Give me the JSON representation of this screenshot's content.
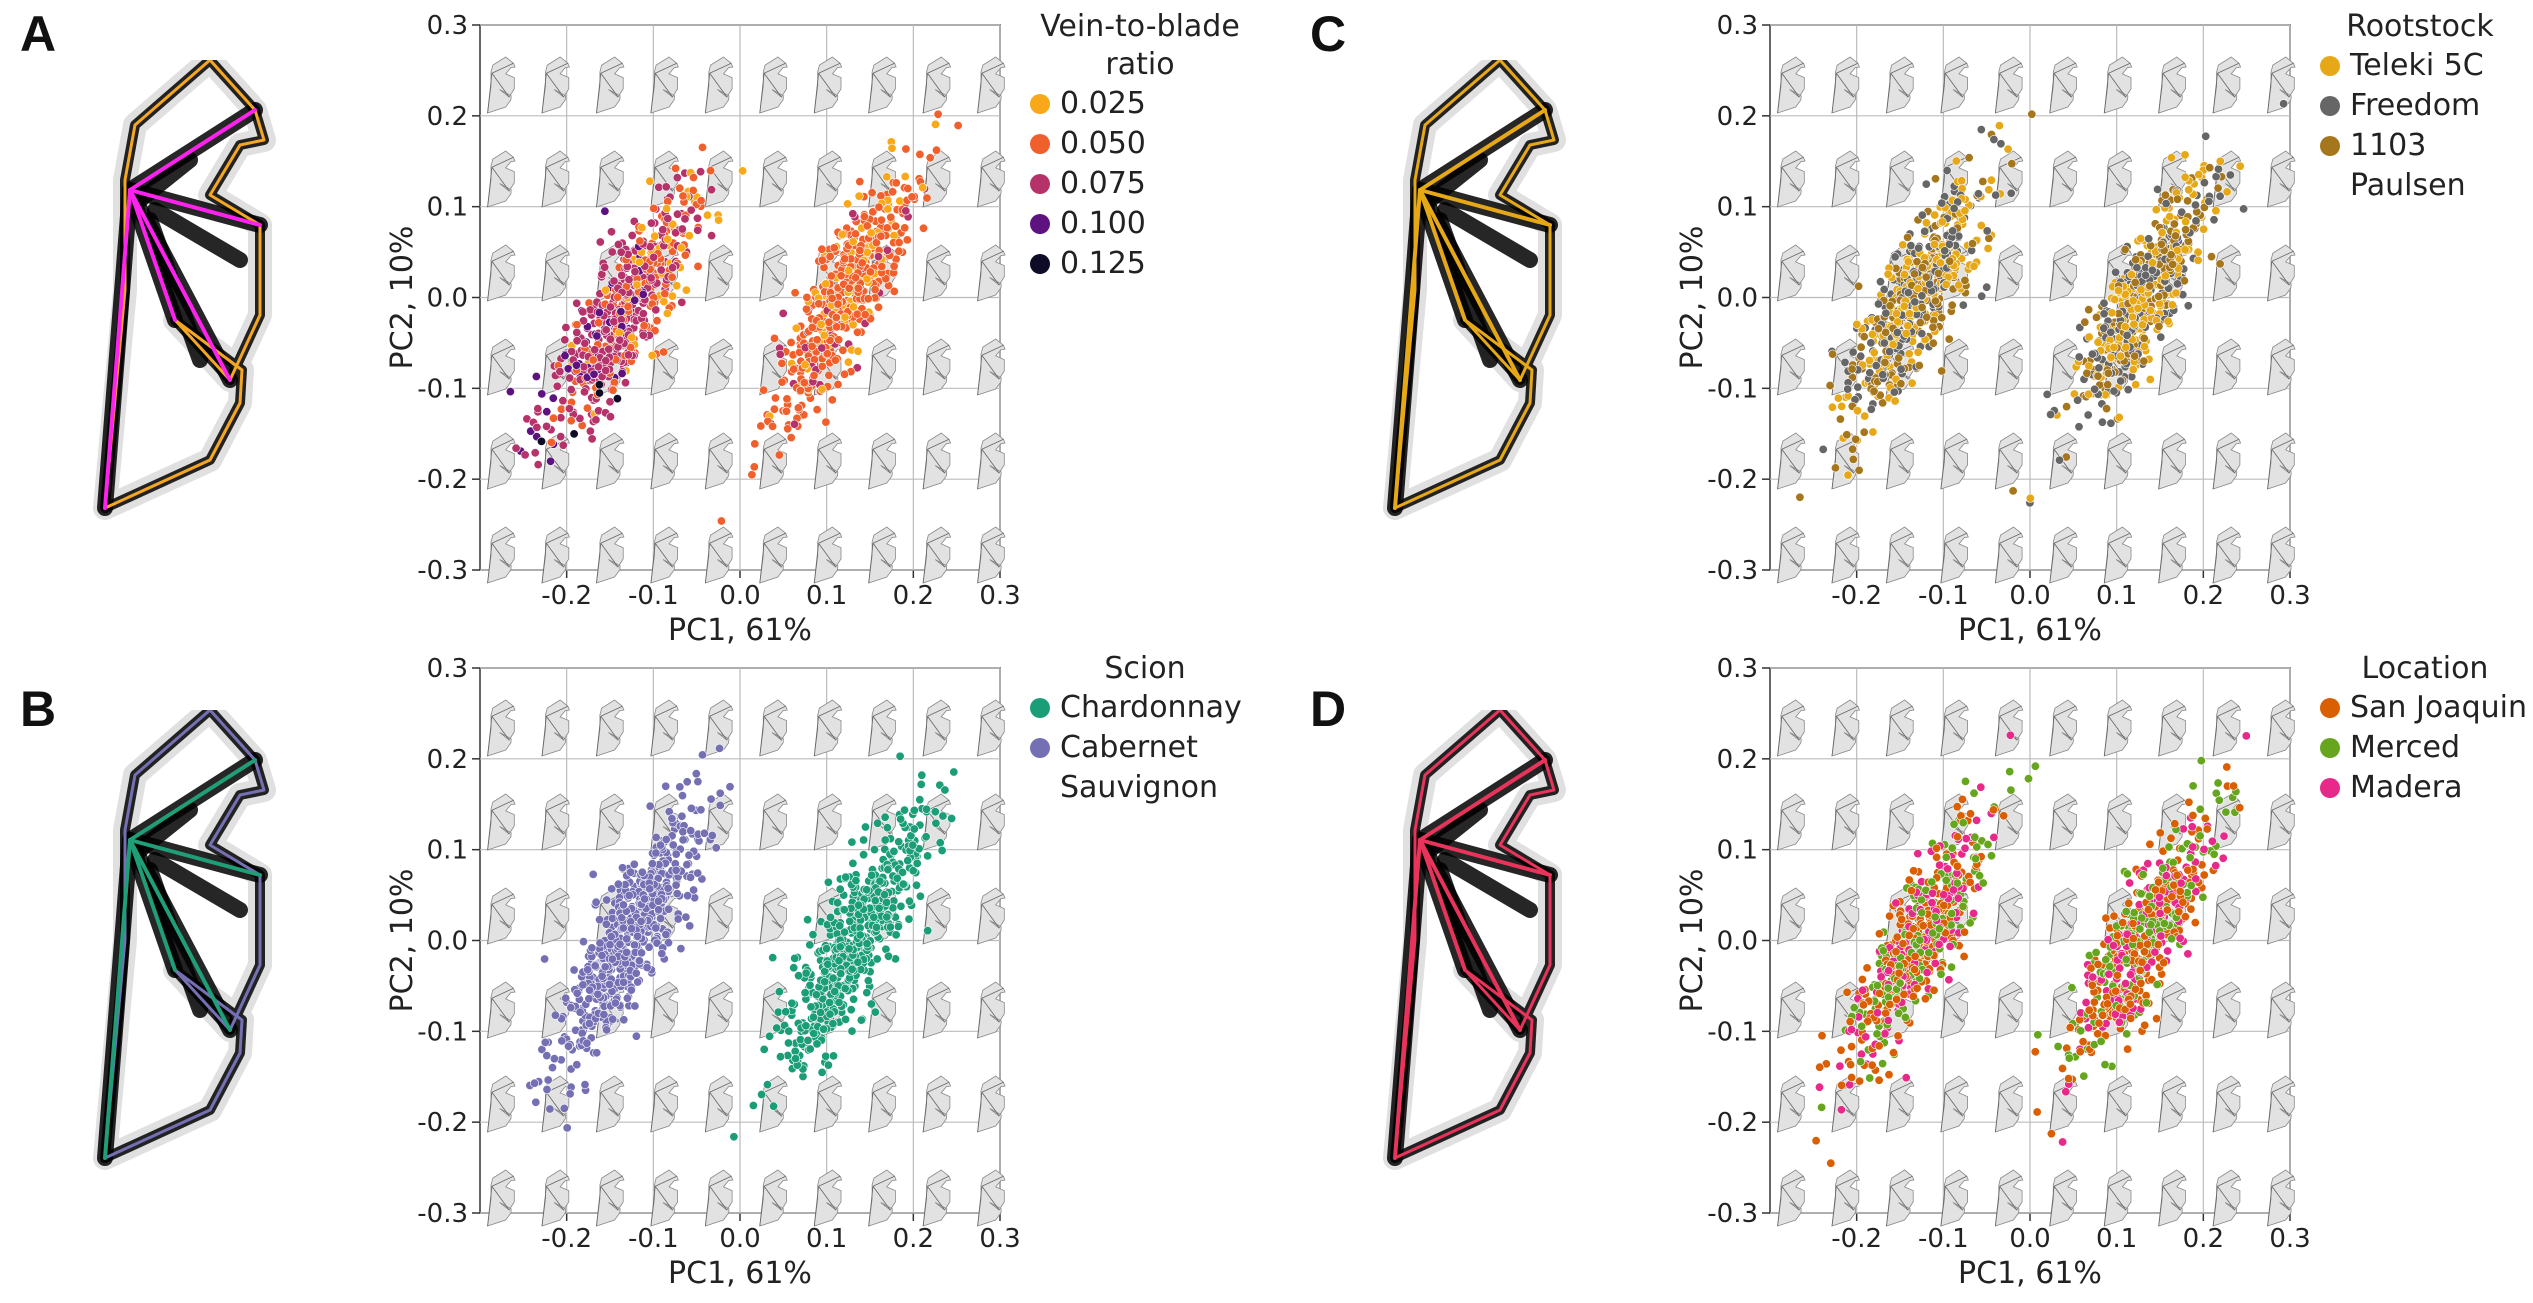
{
  "panels": [
    {
      "letter": "A",
      "legend_title": "Vein-to-blade\nratio",
      "outline_colors": {
        "veins": "#ff22ee",
        "blade": "#f5a623"
      },
      "legend": [
        {
          "label": "0.025",
          "color": "#f9a81a"
        },
        {
          "label": "0.050",
          "color": "#f0602d"
        },
        {
          "label": "0.075",
          "color": "#b5336a"
        },
        {
          "label": "0.100",
          "color": "#5d1280"
        },
        {
          "label": "0.125",
          "color": "#0e0b26"
        }
      ]
    },
    {
      "letter": "B",
      "legend_title": "Scion",
      "outline_colors": {
        "veins": "#1f9e77",
        "blade": "#7570b3"
      },
      "legend": [
        {
          "label": "Chardonnay",
          "color": "#1b9e77"
        },
        {
          "label": "Cabernet\nSauvignon",
          "color": "#7570b3"
        }
      ]
    },
    {
      "letter": "C",
      "legend_title": "Rootstock",
      "outline_colors": {
        "veins": "#e6a817",
        "blade": "#e6a817"
      },
      "legend": [
        {
          "label": "Teleki 5C",
          "color": "#e6a817"
        },
        {
          "label": "Freedom",
          "color": "#666666"
        },
        {
          "label": "1103\nPaulsen",
          "color": "#a6761d"
        }
      ]
    },
    {
      "letter": "D",
      "legend_title": "Location",
      "outline_colors": {
        "veins": "#e8345a",
        "blade": "#e8345a"
      },
      "legend": [
        {
          "label": "San Joaquin",
          "color": "#d95f02"
        },
        {
          "label": "Merced",
          "color": "#66a61e"
        },
        {
          "label": "Madera",
          "color": "#e7298a"
        }
      ]
    }
  ],
  "chart_data": [
    {
      "panel": "A",
      "type": "scatter",
      "xlabel": "PC1, 61%",
      "ylabel": "PC2, 10%",
      "xlim": [
        -0.3,
        0.3
      ],
      "ylim": [
        -0.3,
        0.3
      ],
      "xticks": [
        "-0.2",
        "-0.1",
        "0.0",
        "0.1",
        "0.2",
        "0.3"
      ],
      "yticks": [
        "0.3",
        "0.2",
        "0.1",
        "0.0",
        "-0.1",
        "-0.2",
        "-0.3"
      ],
      "grid": true,
      "legend_placement": "right",
      "series": [
        {
          "name": "0.025",
          "color": "#f9a81a",
          "clusters": [
            {
              "cx": -0.1,
              "cy": 0.02,
              "n": 60
            },
            {
              "cx": 0.13,
              "cy": 0.03,
              "n": 90
            }
          ]
        },
        {
          "name": "0.050",
          "color": "#f0602d",
          "clusters": [
            {
              "cx": -0.12,
              "cy": 0.0,
              "n": 180
            },
            {
              "cx": 0.12,
              "cy": 0.0,
              "n": 380
            }
          ]
        },
        {
          "name": "0.075",
          "color": "#b5336a",
          "clusters": [
            {
              "cx": -0.14,
              "cy": -0.02,
              "n": 330
            },
            {
              "cx": 0.11,
              "cy": -0.02,
              "n": 40
            }
          ]
        },
        {
          "name": "0.100",
          "color": "#5d1280",
          "clusters": [
            {
              "cx": -0.16,
              "cy": -0.05,
              "n": 60
            }
          ]
        },
        {
          "name": "0.125",
          "color": "#0e0b26",
          "clusters": [
            {
              "cx": -0.17,
              "cy": -0.1,
              "n": 6
            }
          ]
        }
      ]
    },
    {
      "panel": "B",
      "type": "scatter",
      "xlabel": "PC1, 61%",
      "ylabel": "PC2, 10%",
      "xlim": [
        -0.3,
        0.3
      ],
      "ylim": [
        -0.3,
        0.3
      ],
      "xticks": [
        "-0.2",
        "-0.1",
        "0.0",
        "0.1",
        "0.2",
        "0.3"
      ],
      "yticks": [
        "0.3",
        "0.2",
        "0.1",
        "0.0",
        "-0.1",
        "-0.2",
        "-0.3"
      ],
      "grid": true,
      "legend_placement": "right",
      "series": [
        {
          "name": "Cabernet Sauvignon",
          "color": "#7570b3",
          "clusters": [
            {
              "cx": -0.13,
              "cy": 0.0,
              "n": 620
            }
          ]
        },
        {
          "name": "Chardonnay",
          "color": "#1b9e77",
          "clusters": [
            {
              "cx": 0.13,
              "cy": 0.0,
              "n": 560
            }
          ]
        }
      ]
    },
    {
      "panel": "C",
      "type": "scatter",
      "xlabel": "PC1, 61%",
      "ylabel": "PC2, 10%",
      "xlim": [
        -0.3,
        0.3
      ],
      "ylim": [
        -0.3,
        0.3
      ],
      "xticks": [
        "-0.2",
        "-0.1",
        "0.0",
        "0.1",
        "0.2",
        "0.3"
      ],
      "yticks": [
        "0.3",
        "0.2",
        "0.1",
        "0.0",
        "-0.1",
        "-0.2",
        "-0.3"
      ],
      "grid": true,
      "legend_placement": "right",
      "series": [
        {
          "name": "Teleki 5C",
          "color": "#e6a817",
          "clusters": [
            {
              "cx": -0.13,
              "cy": 0.0,
              "n": 230
            },
            {
              "cx": 0.13,
              "cy": 0.0,
              "n": 210
            }
          ]
        },
        {
          "name": "Freedom",
          "color": "#666666",
          "clusters": [
            {
              "cx": -0.13,
              "cy": 0.0,
              "n": 200
            },
            {
              "cx": 0.13,
              "cy": 0.0,
              "n": 190
            }
          ]
        },
        {
          "name": "1103 Paulsen",
          "color": "#a6761d",
          "clusters": [
            {
              "cx": -0.13,
              "cy": 0.0,
              "n": 190
            },
            {
              "cx": 0.13,
              "cy": 0.0,
              "n": 170
            }
          ]
        }
      ]
    },
    {
      "panel": "D",
      "type": "scatter",
      "xlabel": "PC1, 61%",
      "ylabel": "PC2, 10%",
      "xlim": [
        -0.3,
        0.3
      ],
      "ylim": [
        -0.3,
        0.3
      ],
      "xticks": [
        "-0.2",
        "-0.1",
        "0.0",
        "0.1",
        "0.2",
        "0.3"
      ],
      "yticks": [
        "0.3",
        "0.2",
        "0.1",
        "0.0",
        "-0.1",
        "-0.2",
        "-0.3"
      ],
      "grid": true,
      "legend_placement": "right",
      "series": [
        {
          "name": "San Joaquin",
          "color": "#d95f02",
          "clusters": [
            {
              "cx": -0.13,
              "cy": 0.0,
              "n": 260
            },
            {
              "cx": 0.13,
              "cy": 0.0,
              "n": 240
            }
          ]
        },
        {
          "name": "Merced",
          "color": "#66a61e",
          "clusters": [
            {
              "cx": -0.13,
              "cy": 0.0,
              "n": 200
            },
            {
              "cx": 0.13,
              "cy": 0.0,
              "n": 180
            }
          ]
        },
        {
          "name": "Madera",
          "color": "#e7298a",
          "clusters": [
            {
              "cx": -0.13,
              "cy": 0.0,
              "n": 150
            },
            {
              "cx": 0.13,
              "cy": 0.0,
              "n": 140
            }
          ]
        }
      ]
    }
  ]
}
